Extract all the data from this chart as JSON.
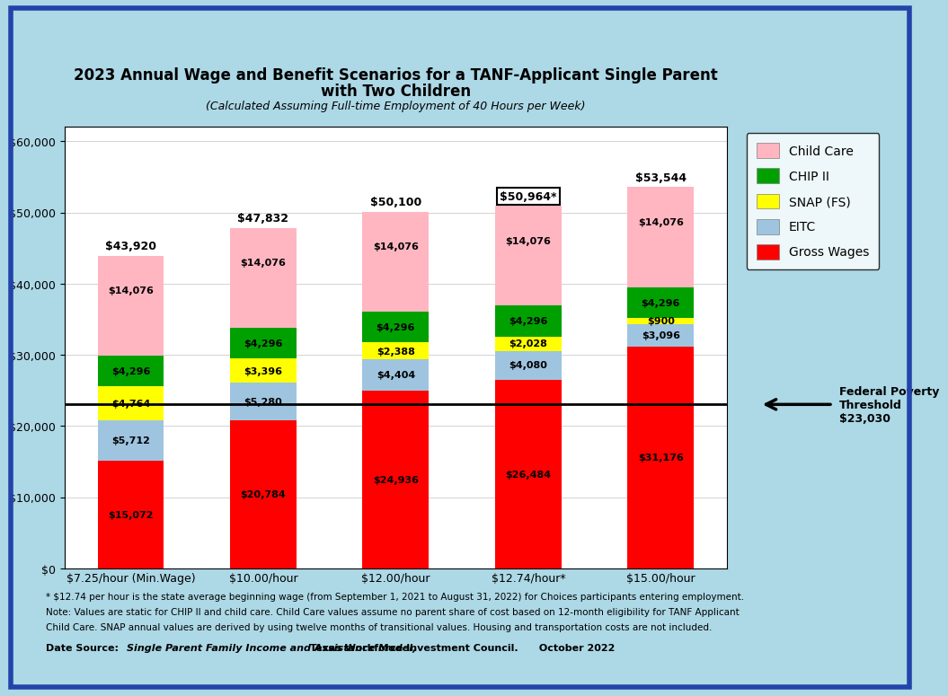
{
  "categories": [
    "$7.25/hour (Min.Wage)",
    "$10.00/hour",
    "$12.00/hour",
    "$12.74/hour*",
    "$15.00/hour"
  ],
  "gross_wages": [
    15072,
    20784,
    24936,
    26484,
    31176
  ],
  "eitc": [
    5712,
    5280,
    4404,
    4080,
    3096
  ],
  "snap": [
    4764,
    3396,
    2388,
    2028,
    900
  ],
  "chip": [
    4296,
    4296,
    4296,
    4296,
    4296
  ],
  "childcare": [
    14076,
    14076,
    14076,
    14076,
    14076
  ],
  "totals": [
    43920,
    47832,
    50100,
    50964,
    53544
  ],
  "total_labels": [
    "$43,920",
    "$47,832",
    "$50,100",
    "$50,964*",
    "$53,544"
  ],
  "total_boxed": [
    false,
    false,
    false,
    true,
    false
  ],
  "gross_labels": [
    "$15,072",
    "$20,784",
    "$24,936",
    "$26,484",
    "$31,176"
  ],
  "eitc_labels": [
    "$5,712",
    "$5,280",
    "$4,404",
    "$4,080",
    "$3,096"
  ],
  "snap_labels": [
    "$4,764",
    "$3,396",
    "$2,388",
    "$2,028",
    "$900"
  ],
  "chip_labels": [
    "$4,296",
    "$4,296",
    "$4,296",
    "$4,296",
    "$4,296"
  ],
  "childcare_labels": [
    "$14,076",
    "$14,076",
    "$14,076",
    "$14,076",
    "$14,076"
  ],
  "colors": {
    "gross_wages": "#FF0000",
    "eitc": "#9EC4E0",
    "snap": "#FFFF00",
    "chip": "#00A000",
    "childcare": "#FFB6C1"
  },
  "title_line1": "2023 Annual Wage and Benefit Scenarios for a TANF-Applicant Single Parent",
  "title_line2": "with Two Children",
  "subtitle": "(Calculated Assuming Full-time Employment of 40 Hours per Week)",
  "ylim": [
    0,
    62000
  ],
  "yticks": [
    0,
    10000,
    20000,
    30000,
    40000,
    50000,
    60000
  ],
  "legend_labels": [
    "Child Care",
    "CHIP II",
    "SNAP (FS)",
    "EITC",
    "Gross Wages"
  ],
  "legend_colors": [
    "#FFB6C1",
    "#00A000",
    "#FFFF00",
    "#9EC4E0",
    "#FF0000"
  ],
  "poverty_line": 23030,
  "poverty_label": "Federal Poverty\nThreshold\n$23,030",
  "footnote1": "* $12.74 per hour is the state average beginning wage (from September 1, 2021 to August 31, 2022) for Choices participants entering employment.",
  "footnote2": "Note: Values are static for CHIP II and child care. Child Care values assume no parent share of cost based on 12-month eligibility for TANF Applicant",
  "footnote3": "Child Care. SNAP annual values are derived by using twelve months of transitional values. Housing and transportation costs are not included.",
  "source_prefix": "Date Source:  ",
  "source_bold": "Single Parent Family Income and Assistance Model,",
  "source_rest": " Texas Workforce Investment Council.      October 2022",
  "bg_color": "#ADD8E6",
  "plot_bg_color": "#FFFFFF"
}
